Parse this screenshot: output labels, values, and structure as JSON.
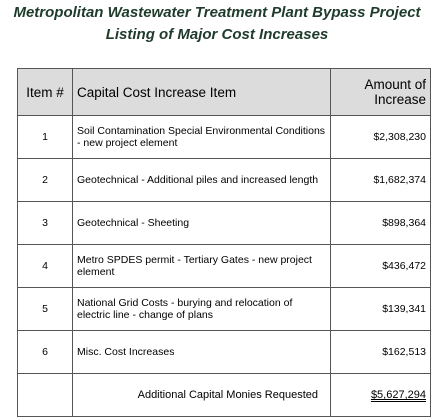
{
  "header": {
    "title_line1": "Metropolitan Wastewater Treatment Plant Bypass Project",
    "title_line2": "Listing of Major Cost Increases"
  },
  "table": {
    "columns": [
      "Item #",
      "Capital Cost Increase Item",
      "Amount of Increase"
    ],
    "rows": [
      [
        "1",
        "Soil Contamination Special Environmental Conditions - new project element",
        "$2,308,230"
      ],
      [
        "2",
        "Geotechnical - Additional piles and increased length",
        "$1,682,374"
      ],
      [
        "3",
        "Geotechnical - Sheeting",
        "$898,364"
      ],
      [
        "4",
        "Metro SPDES permit - Tertiary Gates - new project element",
        "$436,472"
      ],
      [
        "5",
        "National Grid Costs - burying and relocation of electric line - change of plans",
        "$139,341"
      ],
      [
        "6",
        "Misc. Cost Increases",
        "$162,513"
      ]
    ],
    "total": {
      "label": "Additional Capital Monies Requested",
      "value": "$5,627,294"
    }
  }
}
